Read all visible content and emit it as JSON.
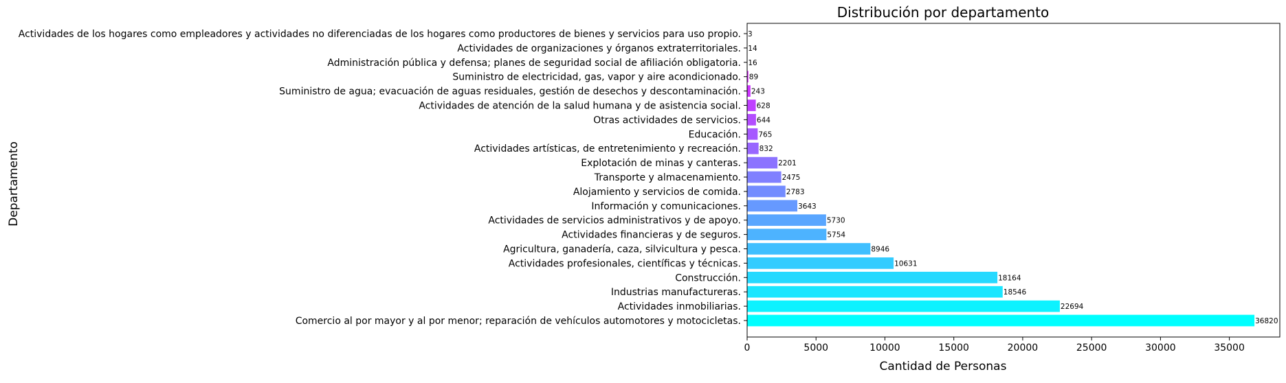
{
  "chart_data": {
    "type": "bar",
    "orientation": "horizontal",
    "title": "Distribución por departamento",
    "xlabel": "Cantidad de Personas",
    "ylabel": "Departamento",
    "xlim": [
      0,
      38661
    ],
    "xticks": [
      0,
      5000,
      10000,
      15000,
      20000,
      25000,
      30000,
      35000
    ],
    "grid": false,
    "colormap_from": "#00ffff",
    "colormap_to": "#ff00ff",
    "categories": [
      "Comercio al por mayor y al por menor; reparación de vehículos automotores y motocicletas.",
      "Actividades inmobiliarias.",
      "Industrias manufactureras.",
      "Construcción.",
      "Actividades profesionales, científicas y técnicas.",
      "Agricultura, ganadería, caza, silvicultura y pesca.",
      "Actividades financieras y de seguros.",
      "Actividades de servicios administrativos y de apoyo.",
      "Información y comunicaciones.",
      "Alojamiento y servicios de comida.",
      "Transporte y almacenamiento.",
      "Explotación de minas y canteras.",
      "Actividades artísticas, de entretenimiento y recreación.",
      "Educación.",
      "Otras actividades de servicios.",
      "Actividades de atención de la salud humana y de asistencia social.",
      "Suministro de agua; evacuación de aguas residuales, gestión de desechos y descontaminación.",
      "Suministro de electricidad, gas, vapor y aire acondicionado.",
      "Administración pública y defensa; planes de seguridad social de afiliación obligatoria.",
      "Actividades de organizaciones y órganos extraterritoriales.",
      "Actividades de los hogares como empleadores y actividades no diferenciadas de los hogares como productores de bienes y servicios para uso propio."
    ],
    "values": [
      36820,
      22694,
      18546,
      18164,
      10631,
      8946,
      5754,
      5730,
      3643,
      2783,
      2475,
      2201,
      832,
      765,
      644,
      628,
      243,
      89,
      16,
      14,
      3
    ]
  }
}
